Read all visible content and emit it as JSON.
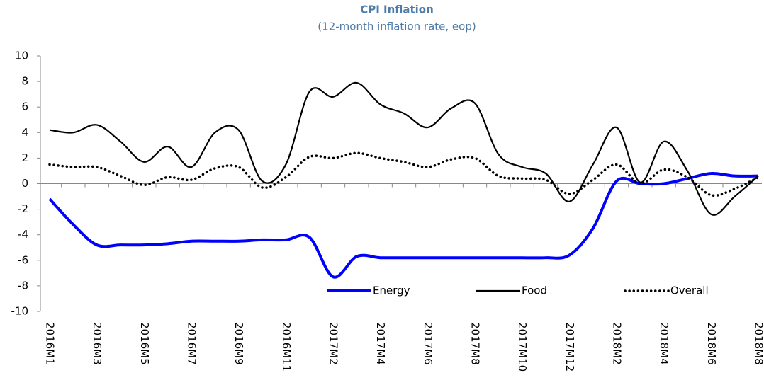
{
  "chart_data": {
    "type": "line",
    "title": "CPI Inflation",
    "subtitle": "(12-month inflation rate, eop)",
    "categories": [
      "2016M1",
      null,
      "2016M3",
      null,
      "2016M5",
      null,
      "2016M7",
      null,
      "2016M9",
      null,
      "2016M11",
      null,
      "2017M2",
      null,
      "2017M4",
      null,
      "2017M6",
      null,
      "2017M8",
      null,
      "2017M10",
      null,
      "2017M12",
      null,
      "2018M2",
      null,
      "2018M4",
      null,
      "2018M6",
      null,
      "2018M8"
    ],
    "series": [
      {
        "name": "Energy",
        "color": "#0000ff",
        "style": "solid",
        "values": [
          -1.2,
          -3.2,
          -4.8,
          -4.8,
          -4.8,
          -4.7,
          -4.5,
          -4.5,
          -4.5,
          -4.4,
          -4.4,
          -4.2,
          -7.3,
          -5.7,
          -5.8,
          -5.8,
          -5.8,
          -5.8,
          -5.8,
          -5.8,
          -5.8,
          -5.8,
          -5.6,
          -3.5,
          0.2,
          0.0,
          0.0,
          0.4,
          0.8,
          0.6,
          0.6
        ]
      },
      {
        "name": "Food",
        "color": "#000000",
        "style": "solid",
        "values": [
          4.2,
          4.0,
          4.6,
          3.3,
          1.7,
          2.9,
          1.3,
          4.0,
          4.2,
          0.2,
          1.5,
          7.2,
          6.8,
          7.9,
          6.2,
          5.5,
          4.4,
          5.9,
          6.3,
          2.3,
          1.3,
          0.8,
          -1.4,
          1.5,
          4.4,
          0.1,
          3.3,
          1.0,
          -2.4,
          -1.0,
          0.6
        ]
      },
      {
        "name": "Overall",
        "color": "#000000",
        "style": "dotted",
        "values": [
          1.5,
          1.3,
          1.3,
          0.6,
          -0.1,
          0.5,
          0.3,
          1.2,
          1.3,
          -0.3,
          0.5,
          2.1,
          2.0,
          2.4,
          2.0,
          1.7,
          1.3,
          1.9,
          2.0,
          0.6,
          0.4,
          0.3,
          -0.8,
          0.3,
          1.5,
          0.0,
          1.1,
          0.5,
          -0.9,
          -0.4,
          0.5
        ]
      }
    ],
    "ylim": [
      -10,
      10
    ],
    "yticks": [
      -10,
      -8,
      -6,
      -4,
      -2,
      0,
      2,
      4,
      6,
      8,
      10
    ],
    "grid": false,
    "legend": "lower right"
  }
}
